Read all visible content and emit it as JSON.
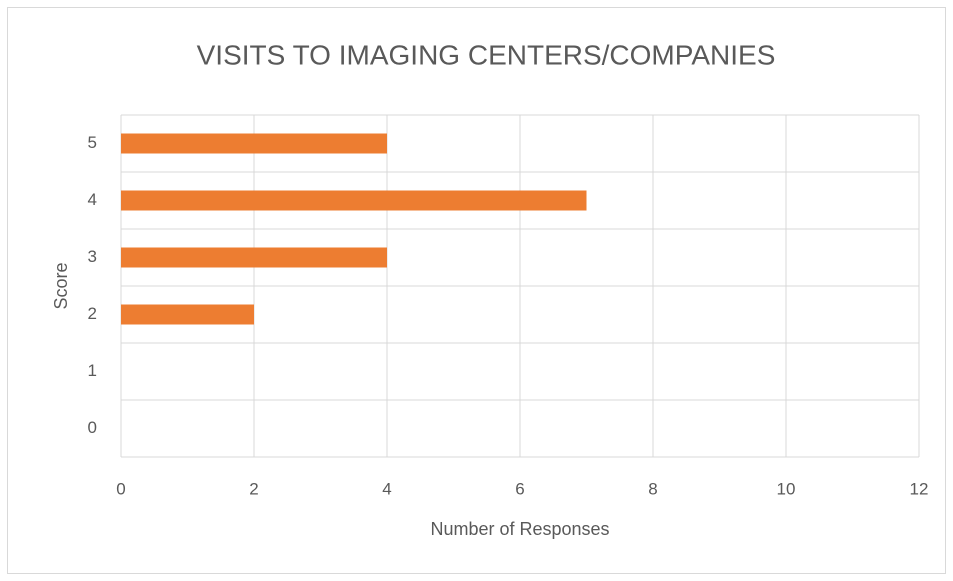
{
  "chart_data": {
    "type": "barh",
    "title": "VISITS TO IMAGING CENTERS/COMPANIES",
    "x_label": "Number of Responses",
    "y_label": "Score",
    "categories": [
      "0",
      "1",
      "2",
      "3",
      "4",
      "5"
    ],
    "values": [
      0,
      0,
      2,
      4,
      7,
      4
    ],
    "color": "#ed7d31",
    "xlim": [
      0,
      12
    ],
    "xticks": [
      0,
      2,
      4,
      6,
      8,
      10,
      12
    ],
    "grid": true
  }
}
